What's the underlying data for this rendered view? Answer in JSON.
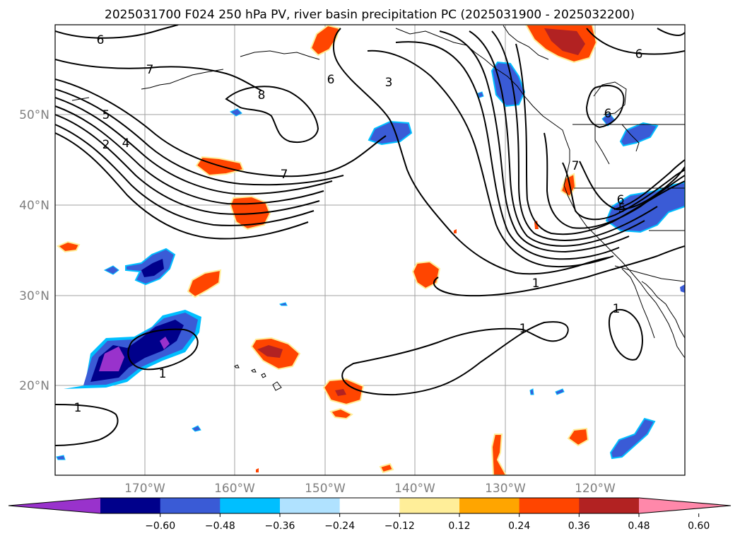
{
  "title": "2025031700 F024 250 hPa PV, river basin precipitation PC (2025031900 - 2025032200)",
  "lon_labels": [
    "170°W",
    "160°W",
    "150°W",
    "140°W",
    "130°W",
    "120°W"
  ],
  "lat_labels": [
    "50°N",
    "40°N",
    "30°N",
    "20°N"
  ],
  "colorbar": {
    "ticks": [
      "−0.60",
      "−0.48",
      "−0.36",
      "−0.24",
      "−0.12",
      "0.12",
      "0.24",
      "0.36",
      "0.48",
      "0.60"
    ],
    "colors": [
      "#9932cc",
      "#00008b",
      "#3a5bd6",
      "#00bfff",
      "#b0e2ff",
      "#ffffff",
      "#ffee99",
      "#ffa500",
      "#ff4500",
      "#b22222",
      "#ff88aa"
    ]
  },
  "contour_labels": [
    "6",
    "7",
    "5",
    "2",
    "4",
    "8",
    "6",
    "3",
    "7",
    "6",
    "7",
    "6",
    "5",
    "6",
    "1",
    "1",
    "1",
    "1",
    "1"
  ]
}
